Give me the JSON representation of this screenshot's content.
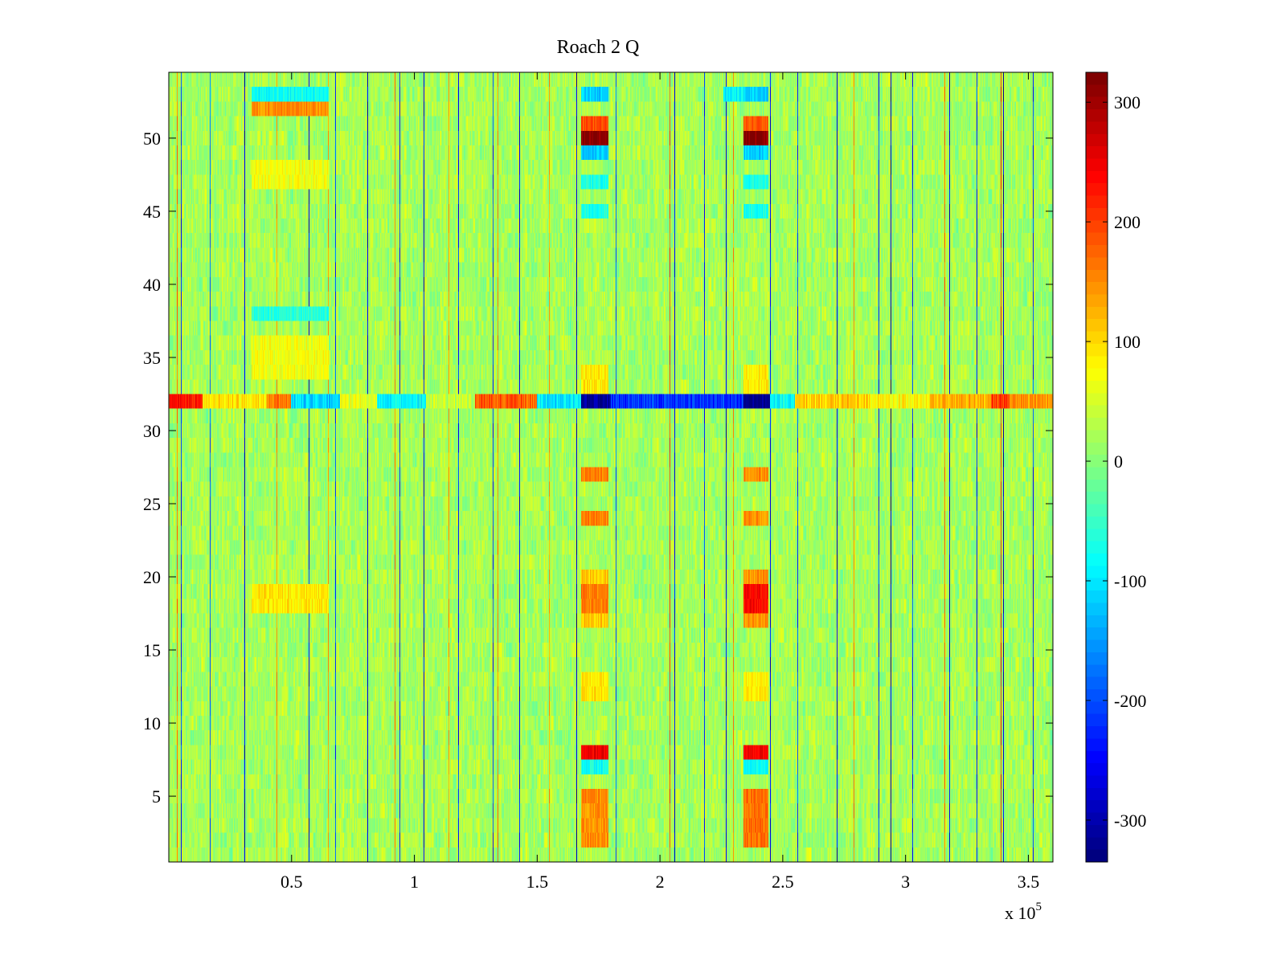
{
  "chart_data": {
    "type": "heatmap",
    "title": "Roach 2 Q",
    "xlabel": "",
    "ylabel": "",
    "x_exponent_label": {
      "base": "x 10",
      "exponent": "5"
    },
    "xlim": [
      0,
      360000
    ],
    "ylim": [
      0.5,
      54.5
    ],
    "x_ticks": [
      {
        "value": 50000,
        "label": "0.5"
      },
      {
        "value": 100000,
        "label": "1"
      },
      {
        "value": 150000,
        "label": "1.5"
      },
      {
        "value": 200000,
        "label": "2"
      },
      {
        "value": 250000,
        "label": "2.5"
      },
      {
        "value": 300000,
        "label": "3"
      },
      {
        "value": 350000,
        "label": "3.5"
      }
    ],
    "y_ticks": [
      {
        "value": 5,
        "label": "5"
      },
      {
        "value": 10,
        "label": "10"
      },
      {
        "value": 15,
        "label": "15"
      },
      {
        "value": 20,
        "label": "20"
      },
      {
        "value": 25,
        "label": "25"
      },
      {
        "value": 30,
        "label": "30"
      },
      {
        "value": 35,
        "label": "35"
      },
      {
        "value": 40,
        "label": "40"
      },
      {
        "value": 45,
        "label": "45"
      },
      {
        "value": 50,
        "label": "50"
      }
    ],
    "rows": 54,
    "colormap": "jet",
    "clim": [
      -335,
      325
    ],
    "colorbar": {
      "ticks": [
        {
          "value": 300,
          "label": "300"
        },
        {
          "value": 200,
          "label": "200"
        },
        {
          "value": 100,
          "label": "100"
        },
        {
          "value": 0,
          "label": "0"
        },
        {
          "value": -100,
          "label": "-100"
        },
        {
          "value": -200,
          "label": "-200"
        },
        {
          "value": -300,
          "label": "-300"
        }
      ]
    },
    "baseline_value": 20,
    "noise_amplitude": 45,
    "vertical_streaks": [
      {
        "x": 3500,
        "value": 180
      },
      {
        "x": 5000,
        "value": -250
      },
      {
        "x": 17000,
        "value": -200
      },
      {
        "x": 31000,
        "value": -300
      },
      {
        "x": 44000,
        "value": 160
      },
      {
        "x": 57000,
        "value": -280
      },
      {
        "x": 65000,
        "value": 150
      },
      {
        "x": 68000,
        "value": -220
      },
      {
        "x": 81000,
        "value": -300
      },
      {
        "x": 92000,
        "value": 170
      },
      {
        "x": 94000,
        "value": -230
      },
      {
        "x": 104000,
        "value": -280
      },
      {
        "x": 114000,
        "value": 150
      },
      {
        "x": 118000,
        "value": -250
      },
      {
        "x": 132000,
        "value": -230
      },
      {
        "x": 134000,
        "value": 170
      },
      {
        "x": 143000,
        "value": -270
      },
      {
        "x": 155000,
        "value": 150
      },
      {
        "x": 166000,
        "value": -300
      },
      {
        "x": 182000,
        "value": -210
      },
      {
        "x": 204000,
        "value": 200
      },
      {
        "x": 206000,
        "value": -280
      },
      {
        "x": 218000,
        "value": -230
      },
      {
        "x": 227000,
        "value": -300
      },
      {
        "x": 230000,
        "value": 160
      },
      {
        "x": 245000,
        "value": -280
      },
      {
        "x": 256000,
        "value": -220
      },
      {
        "x": 272000,
        "value": -300
      },
      {
        "x": 279000,
        "value": 170
      },
      {
        "x": 289000,
        "value": -240
      },
      {
        "x": 294000,
        "value": -310
      },
      {
        "x": 303000,
        "value": -230
      },
      {
        "x": 316000,
        "value": 180
      },
      {
        "x": 318000,
        "value": -280
      },
      {
        "x": 329000,
        "value": -250
      },
      {
        "x": 339000,
        "value": 220
      },
      {
        "x": 340000,
        "value": -300
      },
      {
        "x": 352000,
        "value": -240
      }
    ],
    "row_32_band": [
      {
        "x_start": 0,
        "x_end": 14000,
        "value": 230
      },
      {
        "x_start": 14000,
        "x_end": 40000,
        "value": 90
      },
      {
        "x_start": 40000,
        "x_end": 50000,
        "value": 160
      },
      {
        "x_start": 50000,
        "x_end": 70000,
        "value": -110
      },
      {
        "x_start": 70000,
        "x_end": 85000,
        "value": 60
      },
      {
        "x_start": 85000,
        "x_end": 105000,
        "value": -90
      },
      {
        "x_start": 105000,
        "x_end": 125000,
        "value": 40
      },
      {
        "x_start": 125000,
        "x_end": 150000,
        "value": 180
      },
      {
        "x_start": 150000,
        "x_end": 168000,
        "value": -100
      },
      {
        "x_start": 168000,
        "x_end": 180000,
        "value": -320
      },
      {
        "x_start": 180000,
        "x_end": 234000,
        "value": -220
      },
      {
        "x_start": 234000,
        "x_end": 245000,
        "value": -330
      },
      {
        "x_start": 245000,
        "x_end": 255000,
        "value": -90
      },
      {
        "x_start": 255000,
        "x_end": 285000,
        "value": 110
      },
      {
        "x_start": 285000,
        "x_end": 310000,
        "value": 80
      },
      {
        "x_start": 310000,
        "x_end": 335000,
        "value": 130
      },
      {
        "x_start": 335000,
        "x_end": 342000,
        "value": 210
      },
      {
        "x_start": 342000,
        "x_end": 360000,
        "value": 150
      }
    ],
    "blocks": [
      {
        "x_start": 168000,
        "x_end": 179000,
        "rows": [
          50
        ],
        "value": 320
      },
      {
        "x_start": 168000,
        "x_end": 179000,
        "rows": [
          51
        ],
        "value": 190
      },
      {
        "x_start": 168000,
        "x_end": 179000,
        "rows": [
          49,
          53
        ],
        "value": -120
      },
      {
        "x_start": 168000,
        "x_end": 179000,
        "rows": [
          45,
          47
        ],
        "value": -70
      },
      {
        "x_start": 168000,
        "x_end": 179000,
        "rows": [
          33,
          34
        ],
        "value": 90
      },
      {
        "x_start": 168000,
        "x_end": 179000,
        "rows": [
          27,
          24,
          19,
          18
        ],
        "value": 160
      },
      {
        "x_start": 168000,
        "x_end": 179000,
        "rows": [
          20,
          17
        ],
        "value": 110
      },
      {
        "x_start": 168000,
        "x_end": 179000,
        "rows": [
          8
        ],
        "value": 250
      },
      {
        "x_start": 168000,
        "x_end": 179000,
        "rows": [
          7
        ],
        "value": -80
      },
      {
        "x_start": 168000,
        "x_end": 179000,
        "rows": [
          2,
          3,
          4,
          5
        ],
        "value": 150
      },
      {
        "x_start": 168000,
        "x_end": 179000,
        "rows": [
          12,
          13
        ],
        "value": 90
      },
      {
        "x_start": 234000,
        "x_end": 244000,
        "rows": [
          50
        ],
        "value": 320
      },
      {
        "x_start": 234000,
        "x_end": 244000,
        "rows": [
          51
        ],
        "value": 190
      },
      {
        "x_start": 234000,
        "x_end": 244000,
        "rows": [
          49,
          53
        ],
        "value": -120
      },
      {
        "x_start": 234000,
        "x_end": 244000,
        "rows": [
          45,
          47
        ],
        "value": -70
      },
      {
        "x_start": 234000,
        "x_end": 244000,
        "rows": [
          33,
          34
        ],
        "value": 90
      },
      {
        "x_start": 234000,
        "x_end": 244000,
        "rows": [
          18,
          19
        ],
        "value": 240
      },
      {
        "x_start": 234000,
        "x_end": 244000,
        "rows": [
          20,
          17,
          24,
          27
        ],
        "value": 150
      },
      {
        "x_start": 234000,
        "x_end": 244000,
        "rows": [
          8
        ],
        "value": 250
      },
      {
        "x_start": 234000,
        "x_end": 244000,
        "rows": [
          7
        ],
        "value": -80
      },
      {
        "x_start": 234000,
        "x_end": 244000,
        "rows": [
          2,
          3,
          4,
          5
        ],
        "value": 170
      },
      {
        "x_start": 234000,
        "x_end": 244000,
        "rows": [
          12,
          13
        ],
        "value": 90
      },
      {
        "x_start": 34000,
        "x_end": 65000,
        "rows": [
          52
        ],
        "value": 150
      },
      {
        "x_start": 34000,
        "x_end": 65000,
        "rows": [
          53
        ],
        "value": -80
      },
      {
        "x_start": 34000,
        "x_end": 65000,
        "rows": [
          18,
          19
        ],
        "value": 90
      },
      {
        "x_start": 34000,
        "x_end": 65000,
        "rows": [
          38
        ],
        "value": -60
      },
      {
        "x_start": 34000,
        "x_end": 65000,
        "rows": [
          34,
          35,
          36,
          47,
          48
        ],
        "value": 70
      },
      {
        "x_start": 226000,
        "x_end": 234000,
        "rows": [
          53
        ],
        "value": -90
      }
    ]
  }
}
